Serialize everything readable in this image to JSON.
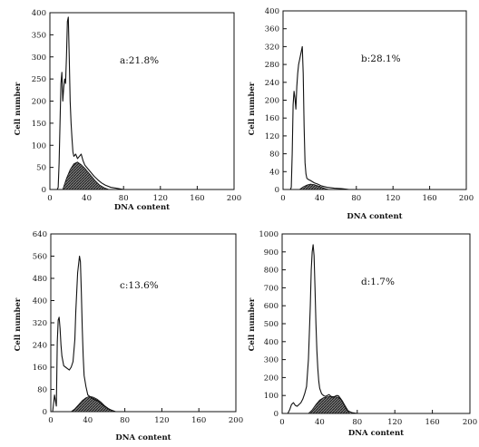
{
  "chart_data": [
    {
      "type": "area",
      "annotation": "a:21.8%",
      "xlabel": "DNA content",
      "ylabel": "Cell number",
      "xlim": [
        0,
        200
      ],
      "ylim": [
        0,
        400
      ],
      "xticks": [
        0,
        40,
        80,
        120,
        160,
        200
      ],
      "yticks": [
        0,
        50,
        100,
        150,
        200,
        250,
        300,
        350,
        400
      ],
      "grid": false,
      "series": [
        {
          "kind": "histogram-outline",
          "x": [
            0,
            8,
            9,
            10,
            11,
            12,
            13,
            14,
            15,
            16,
            17,
            18,
            19,
            20,
            21,
            22,
            23,
            24,
            25,
            26,
            28,
            30,
            32,
            34,
            36,
            38,
            40,
            44,
            48,
            52,
            56,
            60,
            66,
            72,
            80,
            90,
            100
          ],
          "values": [
            0,
            0,
            5,
            60,
            150,
            240,
            265,
            200,
            230,
            250,
            240,
            300,
            380,
            390,
            300,
            200,
            150,
            115,
            85,
            75,
            80,
            70,
            75,
            80,
            65,
            55,
            50,
            40,
            30,
            22,
            15,
            10,
            5,
            3,
            0,
            0,
            0
          ]
        },
        {
          "kind": "shaded-area",
          "x": [
            14,
            18,
            22,
            26,
            30,
            34,
            38,
            42,
            46,
            50,
            54,
            60,
            64
          ],
          "values": [
            0,
            25,
            45,
            58,
            62,
            56,
            48,
            38,
            28,
            18,
            10,
            3,
            0
          ]
        }
      ]
    },
    {
      "type": "area",
      "annotation": "b:28.1%",
      "xlabel": "DNA content",
      "ylabel": "Cell number",
      "xlim": [
        0,
        200
      ],
      "ylim": [
        0,
        400
      ],
      "xticks": [
        0,
        40,
        80,
        120,
        160,
        200
      ],
      "yticks": [
        0,
        40,
        80,
        120,
        160,
        200,
        240,
        280,
        320,
        360,
        400
      ],
      "grid": false,
      "series": [
        {
          "kind": "histogram-outline",
          "x": [
            0,
            8,
            9,
            10,
            11,
            12,
            13,
            14,
            15,
            16,
            17,
            18,
            19,
            20,
            21,
            22,
            23,
            24,
            25,
            26,
            28,
            30,
            34,
            38,
            42,
            48,
            56,
            64,
            72,
            80,
            90
          ],
          "values": [
            0,
            0,
            5,
            80,
            190,
            220,
            205,
            180,
            230,
            260,
            280,
            290,
            300,
            310,
            320,
            260,
            140,
            60,
            35,
            25,
            22,
            20,
            15,
            12,
            8,
            5,
            3,
            2,
            0,
            0,
            0
          ]
        },
        {
          "kind": "shaded-area",
          "x": [
            18,
            22,
            26,
            30,
            34,
            38,
            42,
            46,
            50
          ],
          "values": [
            0,
            6,
            10,
            12,
            11,
            8,
            5,
            2,
            0
          ]
        }
      ]
    },
    {
      "type": "area",
      "annotation": "c:13.6%",
      "xlabel": "DNA content",
      "ylabel": "Cell number",
      "xlim": [
        0,
        200
      ],
      "ylim": [
        0,
        640
      ],
      "xticks": [
        0,
        40,
        80,
        120,
        160,
        200
      ],
      "yticks": [
        0,
        80,
        160,
        240,
        320,
        400,
        480,
        560,
        640
      ],
      "grid": false,
      "series": [
        {
          "kind": "histogram-outline",
          "x": [
            0,
            2,
            3,
            4,
            5,
            6,
            7,
            8,
            9,
            10,
            11,
            12,
            14,
            16,
            18,
            20,
            22,
            24,
            26,
            27,
            28,
            29,
            30,
            31,
            32,
            33,
            34,
            35,
            36,
            38,
            40,
            42,
            44,
            46,
            48,
            50,
            54,
            58,
            62,
            66,
            70,
            80
          ],
          "values": [
            0,
            0,
            30,
            60,
            40,
            20,
            250,
            330,
            340,
            300,
            240,
            200,
            165,
            160,
            155,
            150,
            160,
            180,
            260,
            360,
            430,
            500,
            530,
            560,
            540,
            430,
            300,
            200,
            130,
            90,
            60,
            55,
            50,
            45,
            42,
            40,
            30,
            20,
            10,
            5,
            0,
            0
          ]
        },
        {
          "kind": "shaded-area",
          "x": [
            22,
            26,
            30,
            34,
            38,
            42,
            46,
            50,
            54,
            58,
            62,
            66,
            70
          ],
          "values": [
            0,
            10,
            25,
            40,
            50,
            55,
            52,
            45,
            35,
            22,
            12,
            4,
            0
          ]
        }
      ]
    },
    {
      "type": "area",
      "annotation": "d:1.7%",
      "xlabel": "DNA content",
      "ylabel": "Cell number",
      "xlim": [
        0,
        200
      ],
      "ylim": [
        0,
        1000
      ],
      "xticks": [
        0,
        40,
        80,
        120,
        160,
        200
      ],
      "yticks": [
        0,
        100,
        200,
        300,
        400,
        500,
        600,
        700,
        800,
        900,
        1000
      ],
      "grid": false,
      "series": [
        {
          "kind": "histogram-outline",
          "x": [
            0,
            6,
            8,
            10,
            12,
            14,
            16,
            18,
            20,
            22,
            24,
            26,
            28,
            30,
            31,
            32,
            33,
            34,
            35,
            36,
            37,
            38,
            39,
            40,
            42,
            44,
            46,
            48,
            50,
            52,
            54,
            56,
            58,
            60,
            62,
            64,
            66,
            68,
            70,
            74,
            80,
            90
          ],
          "values": [
            0,
            0,
            20,
            50,
            60,
            45,
            40,
            50,
            60,
            80,
            110,
            150,
            300,
            600,
            800,
            900,
            940,
            880,
            700,
            500,
            350,
            250,
            180,
            140,
            110,
            100,
            95,
            100,
            105,
            95,
            90,
            95,
            100,
            98,
            85,
            70,
            50,
            30,
            15,
            5,
            0,
            0
          ]
        },
        {
          "kind": "shaded-area",
          "x": [
            28,
            32,
            36,
            40,
            44,
            48,
            52,
            56,
            60,
            64,
            68,
            72
          ],
          "values": [
            0,
            20,
            50,
            75,
            88,
            92,
            95,
            93,
            90,
            70,
            35,
            0
          ]
        }
      ]
    }
  ]
}
